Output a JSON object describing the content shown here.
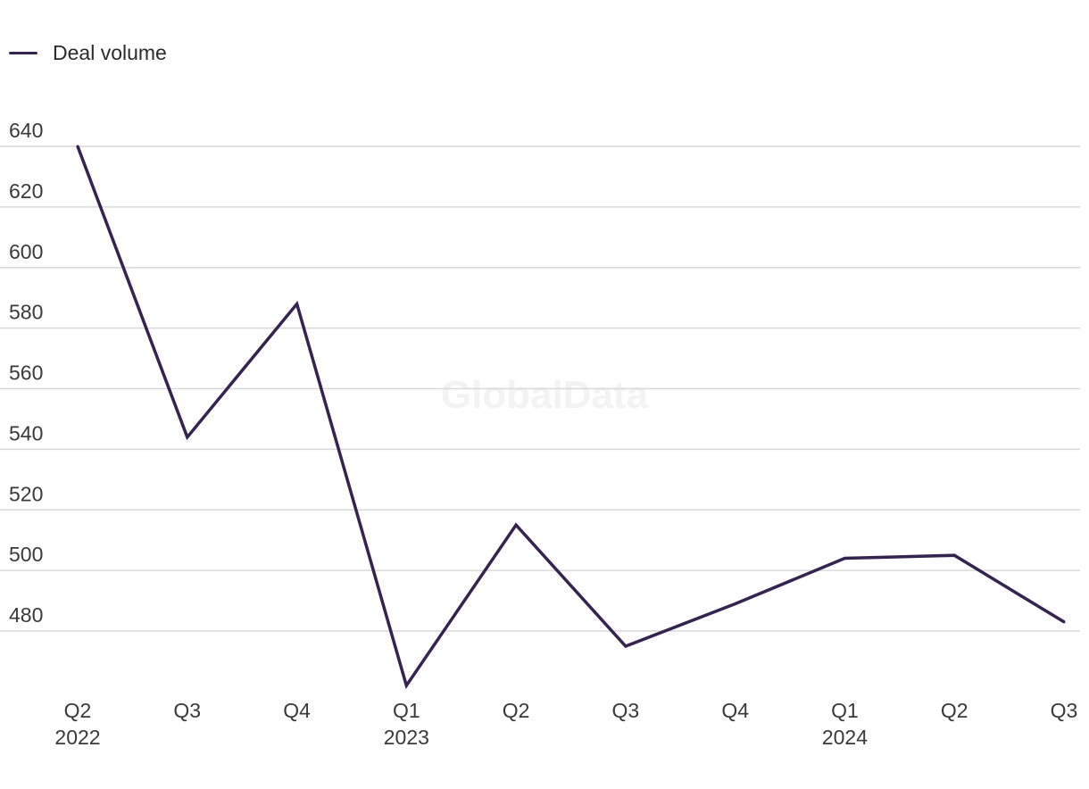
{
  "legend": {
    "label": "Deal volume"
  },
  "watermark": "GlobalData",
  "colors": {
    "line": "#35244f",
    "grid": "#d9d9d9"
  },
  "chart_data": {
    "type": "line",
    "title": "",
    "xlabel": "",
    "ylabel": "",
    "categories": [
      "Q2 2022",
      "Q3 2022",
      "Q4 2022",
      "Q1 2023",
      "Q2 2023",
      "Q3 2023",
      "Q4 2023",
      "Q1 2024",
      "Q2 2024",
      "Q3 2024"
    ],
    "x_tick_labels": [
      {
        "quarter": "Q2",
        "year": "2022"
      },
      {
        "quarter": "Q3",
        "year": ""
      },
      {
        "quarter": "Q4",
        "year": ""
      },
      {
        "quarter": "Q1",
        "year": "2023"
      },
      {
        "quarter": "Q2",
        "year": ""
      },
      {
        "quarter": "Q3",
        "year": ""
      },
      {
        "quarter": "Q4",
        "year": ""
      },
      {
        "quarter": "Q1",
        "year": "2024"
      },
      {
        "quarter": "Q2",
        "year": ""
      },
      {
        "quarter": "Q3",
        "year": ""
      }
    ],
    "series": [
      {
        "name": "Deal volume",
        "values": [
          640,
          544,
          588,
          462,
          515,
          475,
          489,
          504,
          505,
          483
        ]
      }
    ],
    "yticks": [
      480,
      500,
      520,
      540,
      560,
      580,
      600,
      620,
      640
    ],
    "ylim": [
      458,
      644
    ],
    "grid": true,
    "legend_position": "top-left"
  }
}
